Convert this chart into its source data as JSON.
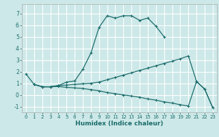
{
  "xlabel": "Humidex (Indice chaleur)",
  "bg_color": "#cde8e8",
  "grid_color": "#ffffff",
  "line_color": "#1a6b6b",
  "xlim": [
    -0.5,
    23.5
  ],
  "ylim": [
    -1.5,
    7.8
  ],
  "yticks": [
    -1,
    0,
    1,
    2,
    3,
    4,
    5,
    6,
    7
  ],
  "xticks": [
    0,
    1,
    2,
    3,
    4,
    5,
    6,
    7,
    8,
    9,
    10,
    11,
    12,
    13,
    14,
    15,
    16,
    17,
    18,
    19,
    20,
    21,
    22,
    23
  ],
  "line1_x": [
    0,
    1,
    2,
    3,
    4,
    5,
    6,
    7,
    8,
    9,
    10,
    11,
    12,
    13,
    14,
    15,
    16,
    17
  ],
  "line1_y": [
    1.8,
    0.9,
    0.7,
    0.7,
    0.8,
    1.1,
    1.2,
    2.2,
    3.6,
    5.8,
    6.8,
    6.6,
    6.8,
    6.8,
    6.4,
    6.6,
    5.9,
    5.0
  ],
  "line2_x": [
    1,
    2,
    3,
    4,
    5,
    6,
    7,
    8,
    9,
    10,
    11,
    12,
    13,
    14,
    15,
    16,
    17,
    18,
    19,
    20,
    21,
    22,
    23
  ],
  "line2_y": [
    0.9,
    0.7,
    0.7,
    0.8,
    0.85,
    0.9,
    0.95,
    1.0,
    1.1,
    1.3,
    1.5,
    1.7,
    1.9,
    2.1,
    2.3,
    2.5,
    2.7,
    2.9,
    3.1,
    3.35,
    1.15,
    0.5,
    -1.1
  ],
  "line3_x": [
    1,
    2,
    3,
    4,
    5,
    6,
    7,
    8,
    9,
    10,
    11,
    12,
    13,
    14,
    15,
    16,
    17,
    18,
    19,
    20,
    21,
    22,
    23
  ],
  "line3_y": [
    0.9,
    0.7,
    0.7,
    0.72,
    0.65,
    0.6,
    0.55,
    0.45,
    0.35,
    0.2,
    0.1,
    0.0,
    -0.1,
    -0.2,
    -0.35,
    -0.45,
    -0.6,
    -0.7,
    -0.85,
    -0.95,
    1.15,
    0.5,
    -1.1
  ]
}
